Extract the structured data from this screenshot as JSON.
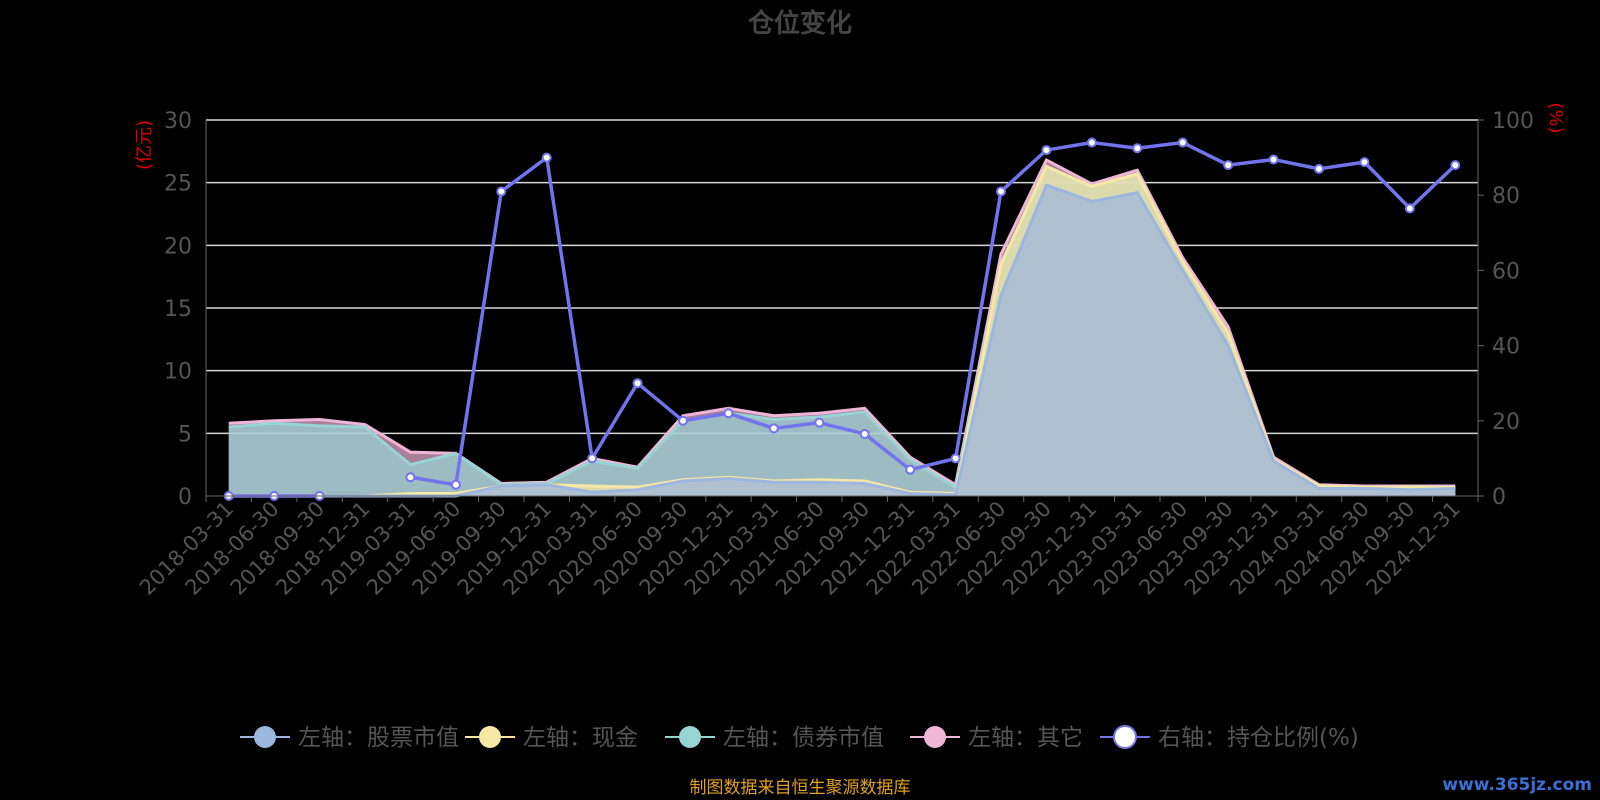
{
  "chart_data": {
    "type": "area",
    "title": "仓位变化",
    "left_unit": "(亿元)",
    "right_unit": "(%)",
    "ylim_left": [
      0,
      30
    ],
    "yticks_left": [
      "0",
      "5",
      "10",
      "15",
      "20",
      "25",
      "30"
    ],
    "ylim_right": [
      0,
      100
    ],
    "yticks_right": [
      "0",
      "20",
      "40",
      "60",
      "80",
      "100"
    ],
    "grid": true,
    "legend_position": "bottom",
    "categories": [
      "2018-03-31",
      "2018-06-30",
      "2018-09-30",
      "2018-12-31",
      "2019-03-31",
      "2019-06-30",
      "2019-09-30",
      "2019-12-31",
      "2020-03-31",
      "2020-06-30",
      "2020-09-30",
      "2020-12-31",
      "2021-03-31",
      "2021-06-30",
      "2021-09-30",
      "2021-12-31",
      "2022-03-31",
      "2022-06-30",
      "2022-09-30",
      "2022-12-31",
      "2023-03-31",
      "2023-06-30",
      "2023-09-30",
      "2023-12-31",
      "2024-03-31",
      "2024-06-30",
      "2024-09-30",
      "2024-12-31"
    ],
    "series": [
      {
        "name": "左轴：股票市值",
        "axis": "left",
        "color": "#9bb6df",
        "values": [
          0,
          0,
          0,
          0,
          0,
          0,
          0.8,
          0.9,
          0.3,
          0.5,
          1.2,
          1.4,
          1.1,
          1.1,
          1.0,
          0.2,
          0.1,
          16,
          24.8,
          23.5,
          24.2,
          18,
          12,
          2.8,
          0.6,
          0.6,
          0.5,
          0.6
        ]
      },
      {
        "name": "左轴：现金",
        "axis": "left",
        "color": "#f7e7a4",
        "values": [
          0,
          0,
          0,
          0,
          0.2,
          0.2,
          0,
          0,
          0.5,
          0.2,
          0.1,
          0.1,
          0.1,
          0.2,
          0.2,
          0.1,
          0.1,
          2.5,
          1.5,
          1.2,
          1.5,
          0.7,
          1.0,
          0.1,
          0.2,
          0.1,
          0.2,
          0.1
        ]
      },
      {
        "name": "左轴：债券市值",
        "axis": "left",
        "color": "#98d4d4",
        "values": [
          5.5,
          5.8,
          5.6,
          5.5,
          2.3,
          3.2,
          0.1,
          0.1,
          2.0,
          1.5,
          4.7,
          5.1,
          4.9,
          5.0,
          5.5,
          2.6,
          0.5,
          0,
          0,
          0,
          0,
          0,
          0,
          0,
          0,
          0,
          0,
          0
        ]
      },
      {
        "name": "左轴：其它",
        "axis": "left",
        "color": "#f0b6d8",
        "values": [
          0.3,
          0.2,
          0.5,
          0.2,
          1.0,
          0,
          0.1,
          0.1,
          0.2,
          0.1,
          0.4,
          0.4,
          0.3,
          0.3,
          0.3,
          0.2,
          0.2,
          0.8,
          0.5,
          0.2,
          0.3,
          0.3,
          0.5,
          0.2,
          0.1,
          0.1,
          0.1,
          0.1
        ]
      },
      {
        "name": "右轴：持仓比例(%)",
        "axis": "right",
        "color": "#7373ee",
        "values": [
          0,
          0,
          0,
          null,
          5,
          3,
          81,
          90,
          10,
          30,
          20,
          22,
          18,
          19.5,
          16.5,
          7,
          10,
          81,
          92,
          94,
          92.5,
          94,
          88,
          89.5,
          87,
          88.8,
          76.5,
          88
        ]
      }
    ],
    "source_note": "制图数据来自恒生聚源数据库",
    "watermark": "www.365jz.com"
  }
}
